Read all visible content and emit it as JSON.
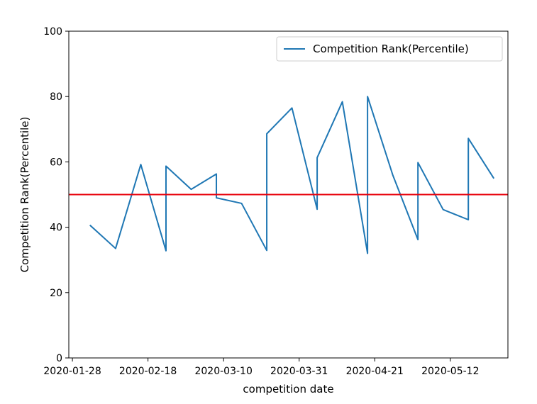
{
  "chart_data": {
    "type": "line",
    "title": "",
    "xlabel": "competition date",
    "ylabel": "Competition Rank(Percentile)",
    "ylim": [
      0,
      100
    ],
    "xlim": [
      "2020-01-27",
      "2020-05-28"
    ],
    "x_tick_labels": [
      "2020-01-28",
      "2020-02-18",
      "2020-03-10",
      "2020-03-31",
      "2020-04-21",
      "2020-05-12"
    ],
    "y_tick_labels": [
      "0",
      "20",
      "40",
      "60",
      "80",
      "100"
    ],
    "grid": false,
    "legend_position": "top-right",
    "series": [
      {
        "name": "Competition Rank(Percentile)",
        "color": "#1f77b4",
        "points": [
          {
            "x": "2020-02-02",
            "y": 40.5
          },
          {
            "x": "2020-02-09",
            "y": 33.5
          },
          {
            "x": "2020-02-16",
            "y": 59.2
          },
          {
            "x": "2020-02-23",
            "y": 32.8
          },
          {
            "x": "2020-02-23",
            "y": 58.7
          },
          {
            "x": "2020-03-01",
            "y": 51.6
          },
          {
            "x": "2020-03-08",
            "y": 56.3
          },
          {
            "x": "2020-03-08",
            "y": 49.0
          },
          {
            "x": "2020-03-15",
            "y": 47.3
          },
          {
            "x": "2020-03-22",
            "y": 32.9
          },
          {
            "x": "2020-03-22",
            "y": 68.6
          },
          {
            "x": "2020-03-29",
            "y": 76.5
          },
          {
            "x": "2020-04-05",
            "y": 45.5
          },
          {
            "x": "2020-04-05",
            "y": 61.3
          },
          {
            "x": "2020-04-12",
            "y": 78.4
          },
          {
            "x": "2020-04-19",
            "y": 32.0
          },
          {
            "x": "2020-04-19",
            "y": 80.0
          },
          {
            "x": "2020-04-26",
            "y": 56.0
          },
          {
            "x": "2020-05-03",
            "y": 36.2
          },
          {
            "x": "2020-05-03",
            "y": 59.8
          },
          {
            "x": "2020-05-10",
            "y": 45.4
          },
          {
            "x": "2020-05-17",
            "y": 42.3
          },
          {
            "x": "2020-05-17",
            "y": 67.2
          },
          {
            "x": "2020-05-24",
            "y": 55.1
          }
        ]
      }
    ],
    "reference_line": {
      "y": 50,
      "color": "#e8000b"
    }
  }
}
